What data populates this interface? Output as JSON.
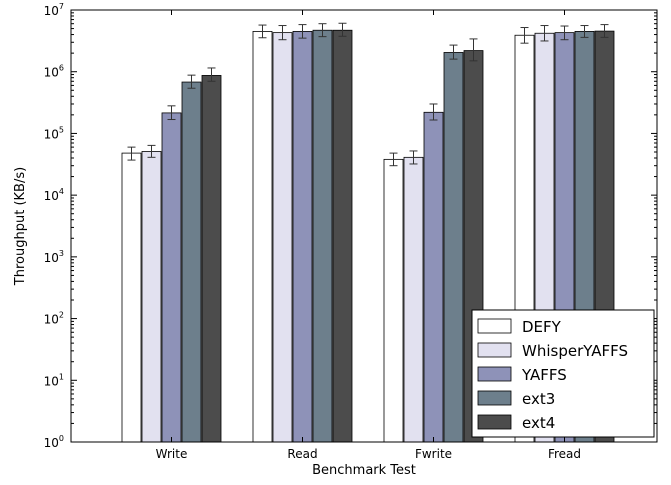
{
  "chart_data": {
    "type": "bar",
    "xlabel": "Benchmark Test",
    "ylabel": "Throughput (KB/s)",
    "yscale": "log",
    "ylim": [
      1,
      10000000
    ],
    "ytick_exponents": [
      0,
      1,
      2,
      3,
      4,
      5,
      6,
      7
    ],
    "ytick_base": "10",
    "categories": [
      "Write",
      "Read",
      "Fwrite",
      "Fread"
    ],
    "legend_position": "lower-right",
    "grid": false,
    "series": [
      {
        "name": "DEFY",
        "color": "#ffffff",
        "values": [
          48000,
          4500000,
          38000,
          3900000
        ],
        "err_low": [
          37000,
          3550000,
          30000,
          2900000
        ],
        "err_high": [
          60000,
          5700000,
          48000,
          5200000
        ]
      },
      {
        "name": "WhisperYAFFS",
        "color": "#e2e1f0",
        "values": [
          51000,
          4300000,
          41000,
          4200000
        ],
        "err_low": [
          41000,
          3300000,
          32000,
          3150000
        ],
        "err_high": [
          64000,
          5600000,
          52000,
          5600000
        ]
      },
      {
        "name": "YAFFS",
        "color": "#8e92b8",
        "values": [
          215000,
          4500000,
          220000,
          4300000
        ],
        "err_low": [
          168000,
          3500000,
          165000,
          3300000
        ],
        "err_high": [
          280000,
          5800000,
          300000,
          5500000
        ]
      },
      {
        "name": "ext3",
        "color": "#6d7f8c",
        "values": [
          680000,
          4700000,
          2050000,
          4500000
        ],
        "err_low": [
          540000,
          3700000,
          1600000,
          3600000
        ],
        "err_high": [
          880000,
          6000000,
          2700000,
          5600000
        ]
      },
      {
        "name": "ext4",
        "color": "#4c4c4c",
        "values": [
          870000,
          4700000,
          2200000,
          4550000
        ],
        "err_low": [
          700000,
          3750000,
          1500000,
          3600000
        ],
        "err_high": [
          1150000,
          6100000,
          3400000,
          5800000
        ]
      }
    ]
  }
}
